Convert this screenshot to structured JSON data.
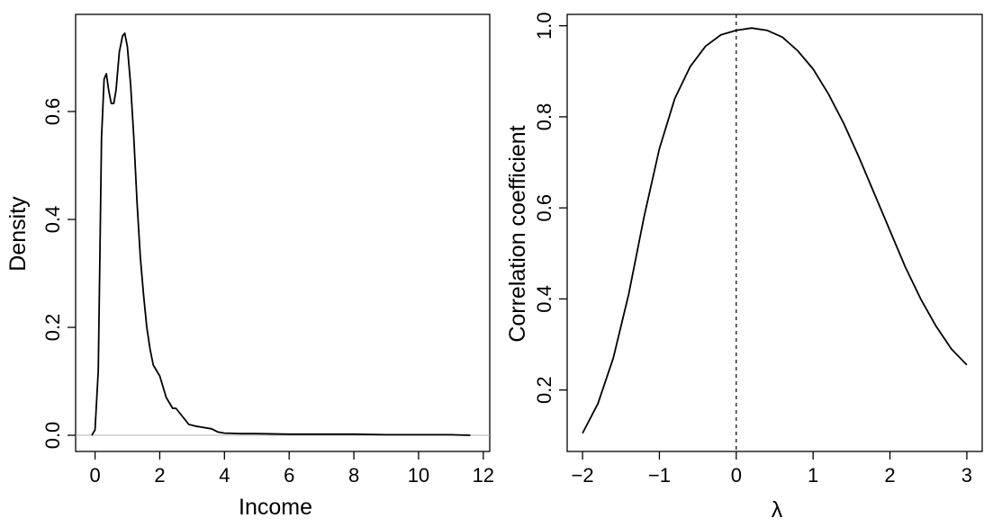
{
  "chart_data": [
    {
      "type": "line",
      "xlabel": "Income",
      "ylabel": "Density",
      "xlim": [
        -0.6,
        12.2
      ],
      "ylim": [
        -0.03,
        0.78
      ],
      "x_ticks": [
        0,
        2,
        4,
        6,
        8,
        10,
        12
      ],
      "x_tick_labels": [
        "0",
        "2",
        "4",
        "6",
        "8",
        "10",
        "12"
      ],
      "y_ticks": [
        0.0,
        0.2,
        0.4,
        0.6
      ],
      "y_tick_labels": [
        "0.0",
        "0.2",
        "0.4",
        "0.6"
      ],
      "reference_lines": [
        {
          "orientation": "horizontal",
          "value": 0,
          "style": "solid-gray"
        }
      ],
      "series": [
        {
          "x": [
            -0.1,
            0.0,
            0.1,
            0.15,
            0.2,
            0.28,
            0.35,
            0.42,
            0.5,
            0.58,
            0.65,
            0.75,
            0.85,
            0.92,
            1.0,
            1.1,
            1.2,
            1.3,
            1.4,
            1.5,
            1.6,
            1.7,
            1.8,
            2.0,
            2.2,
            2.4,
            2.5,
            2.7,
            2.9,
            3.1,
            3.3,
            3.6,
            3.8,
            4.0,
            4.5,
            5.0,
            6.0,
            7.0,
            8.0,
            9.0,
            10.0,
            11.0,
            11.6
          ],
          "y": [
            0.0,
            0.01,
            0.12,
            0.33,
            0.55,
            0.66,
            0.67,
            0.64,
            0.615,
            0.615,
            0.64,
            0.71,
            0.74,
            0.745,
            0.72,
            0.65,
            0.55,
            0.43,
            0.33,
            0.26,
            0.2,
            0.16,
            0.13,
            0.11,
            0.07,
            0.05,
            0.05,
            0.035,
            0.02,
            0.017,
            0.015,
            0.012,
            0.006,
            0.004,
            0.003,
            0.003,
            0.002,
            0.002,
            0.002,
            0.001,
            0.001,
            0.001,
            0.0
          ]
        }
      ]
    },
    {
      "type": "line",
      "xlabel": "λ",
      "ylabel": "Correlation coefficient",
      "xlim": [
        -2.2,
        3.2
      ],
      "ylim": [
        0.065,
        1.025
      ],
      "x_ticks": [
        -2,
        -1,
        0,
        1,
        2,
        3
      ],
      "x_tick_labels": [
        "−2",
        "−1",
        "0",
        "1",
        "2",
        "3"
      ],
      "y_ticks": [
        0.2,
        0.4,
        0.6,
        0.8,
        1.0
      ],
      "y_tick_labels": [
        "0.2",
        "0.4",
        "0.6",
        "0.8",
        "1.0"
      ],
      "reference_lines": [
        {
          "orientation": "vertical",
          "value": 0,
          "style": "dashed"
        }
      ],
      "series": [
        {
          "x": [
            -2.0,
            -1.8,
            -1.6,
            -1.4,
            -1.2,
            -1.0,
            -0.8,
            -0.6,
            -0.4,
            -0.2,
            0.0,
            0.2,
            0.4,
            0.6,
            0.8,
            1.0,
            1.2,
            1.4,
            1.6,
            1.8,
            2.0,
            2.2,
            2.4,
            2.6,
            2.8,
            3.0
          ],
          "y": [
            0.105,
            0.17,
            0.27,
            0.41,
            0.58,
            0.73,
            0.84,
            0.91,
            0.955,
            0.98,
            0.99,
            0.995,
            0.99,
            0.975,
            0.945,
            0.905,
            0.85,
            0.785,
            0.71,
            0.63,
            0.55,
            0.47,
            0.4,
            0.34,
            0.29,
            0.255
          ]
        }
      ]
    }
  ]
}
